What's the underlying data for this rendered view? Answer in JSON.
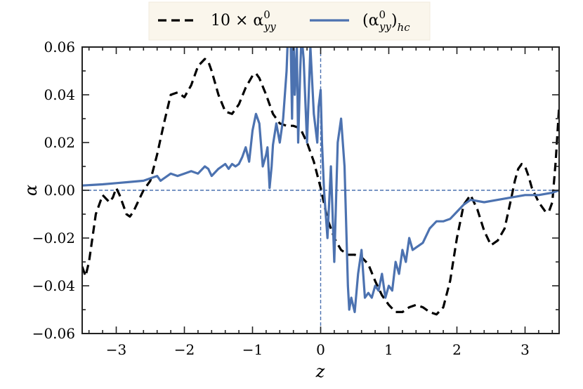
{
  "chart_data": {
    "type": "line",
    "xlabel": "z",
    "ylabel": "α",
    "xlim": [
      -3.5,
      3.5
    ],
    "ylim": [
      -0.06,
      0.06
    ],
    "x_ticks": [
      -3,
      -2,
      -1,
      0,
      1,
      2,
      3
    ],
    "x_tick_labels": [
      "−3",
      "−2",
      "−1",
      "0",
      "1",
      "2",
      "3"
    ],
    "y_ticks": [
      0.06,
      0.04,
      0.02,
      0.0,
      -0.02,
      -0.04,
      -0.06
    ],
    "y_tick_labels": [
      "0.06",
      "0.04",
      "0.02",
      "0.00",
      "−0.02",
      "−0.04",
      "−0.06"
    ],
    "reference_lines": {
      "x": 0,
      "y": 0,
      "color": "#4c72b0",
      "style": "dashed"
    },
    "grid": false,
    "legend_position": "top-center",
    "series": [
      {
        "name": "10 × α⁰yy",
        "legend_main": "10 × α",
        "legend_sup": "0",
        "legend_sub": "yy",
        "color": "#000000",
        "style": "dashed",
        "x": [
          -3.5,
          -3.45,
          -3.4,
          -3.3,
          -3.2,
          -3.1,
          -3.05,
          -3.0,
          -2.95,
          -2.9,
          -2.85,
          -2.8,
          -2.75,
          -2.7,
          -2.6,
          -2.5,
          -2.4,
          -2.3,
          -2.2,
          -2.1,
          -2.0,
          -1.9,
          -1.8,
          -1.7,
          -1.65,
          -1.6,
          -1.5,
          -1.4,
          -1.3,
          -1.2,
          -1.1,
          -1.0,
          -0.95,
          -0.9,
          -0.8,
          -0.7,
          -0.6,
          -0.5,
          -0.4,
          -0.3,
          -0.2,
          -0.1,
          0.0,
          0.1,
          0.2,
          0.3,
          0.4,
          0.5,
          0.6,
          0.7,
          0.8,
          0.9,
          1.0,
          1.1,
          1.2,
          1.3,
          1.4,
          1.5,
          1.6,
          1.7,
          1.8,
          1.9,
          2.0,
          2.1,
          2.2,
          2.3,
          2.4,
          2.5,
          2.6,
          2.7,
          2.8,
          2.85,
          2.9,
          2.95,
          3.0,
          3.05,
          3.1,
          3.2,
          3.3,
          3.35,
          3.4,
          3.45,
          3.5
        ],
        "y": [
          -0.032,
          -0.036,
          -0.03,
          -0.01,
          -0.002,
          -0.005,
          -0.003,
          0.001,
          -0.002,
          -0.006,
          -0.01,
          -0.011,
          -0.009,
          -0.006,
          0.0,
          0.004,
          0.015,
          0.028,
          0.04,
          0.041,
          0.039,
          0.044,
          0.052,
          0.055,
          0.054,
          0.05,
          0.04,
          0.033,
          0.032,
          0.036,
          0.043,
          0.048,
          0.049,
          0.047,
          0.04,
          0.032,
          0.028,
          0.027,
          0.027,
          0.026,
          0.02,
          0.012,
          0.001,
          -0.012,
          -0.02,
          -0.025,
          -0.027,
          -0.027,
          -0.028,
          -0.031,
          -0.038,
          -0.044,
          -0.048,
          -0.051,
          -0.051,
          -0.049,
          -0.048,
          -0.049,
          -0.051,
          -0.052,
          -0.049,
          -0.038,
          -0.02,
          -0.006,
          -0.002,
          -0.008,
          -0.017,
          -0.023,
          -0.021,
          -0.016,
          -0.003,
          0.004,
          0.009,
          0.011,
          0.01,
          0.006,
          0.001,
          -0.005,
          -0.009,
          -0.009,
          -0.005,
          0.012,
          0.035
        ]
      },
      {
        "name": "(α⁰yy)hc",
        "legend_main": "(α",
        "legend_sup": "0",
        "legend_sub": "yy",
        "legend_close": ")",
        "legend_sub2": "hc",
        "color": "#4c72b0",
        "style": "solid",
        "x": [
          -3.5,
          -3.2,
          -3.0,
          -2.8,
          -2.6,
          -2.5,
          -2.4,
          -2.35,
          -2.3,
          -2.2,
          -2.1,
          -2.0,
          -1.9,
          -1.8,
          -1.7,
          -1.65,
          -1.6,
          -1.5,
          -1.4,
          -1.35,
          -1.3,
          -1.25,
          -1.2,
          -1.15,
          -1.1,
          -1.05,
          -1.0,
          -0.95,
          -0.9,
          -0.85,
          -0.8,
          -0.78,
          -0.75,
          -0.72,
          -0.7,
          -0.65,
          -0.6,
          -0.55,
          -0.5,
          -0.48,
          -0.45,
          -0.42,
          -0.4,
          -0.38,
          -0.35,
          -0.33,
          -0.3,
          -0.28,
          -0.25,
          -0.2,
          -0.15,
          -0.1,
          -0.05,
          -0.03,
          0.0,
          0.02,
          0.05,
          0.1,
          0.15,
          0.2,
          0.25,
          0.3,
          0.35,
          0.4,
          0.42,
          0.45,
          0.5,
          0.55,
          0.6,
          0.65,
          0.7,
          0.75,
          0.8,
          0.85,
          0.9,
          0.95,
          1.0,
          1.05,
          1.1,
          1.15,
          1.2,
          1.25,
          1.3,
          1.35,
          1.4,
          1.5,
          1.6,
          1.7,
          1.8,
          1.9,
          2.0,
          2.1,
          2.2,
          2.4,
          2.6,
          2.8,
          3.0,
          3.2,
          3.4,
          3.5
        ],
        "y": [
          0.002,
          0.0025,
          0.003,
          0.0035,
          0.004,
          0.005,
          0.006,
          0.004,
          0.005,
          0.007,
          0.006,
          0.007,
          0.008,
          0.007,
          0.01,
          0.009,
          0.006,
          0.009,
          0.011,
          0.009,
          0.011,
          0.01,
          0.011,
          0.014,
          0.018,
          0.012,
          0.025,
          0.032,
          0.028,
          0.01,
          0.015,
          0.018,
          0.001,
          0.01,
          0.019,
          0.028,
          0.02,
          0.03,
          0.05,
          0.065,
          0.08,
          0.03,
          0.07,
          0.04,
          0.06,
          0.02,
          0.05,
          0.065,
          0.055,
          0.02,
          0.06,
          0.032,
          0.02,
          0.035,
          0.042,
          0.02,
          0.0,
          -0.02,
          0.01,
          -0.03,
          0.02,
          0.03,
          0.01,
          -0.04,
          -0.05,
          -0.045,
          -0.051,
          -0.035,
          -0.025,
          -0.045,
          -0.043,
          -0.045,
          -0.04,
          -0.042,
          -0.035,
          -0.045,
          -0.04,
          -0.042,
          -0.03,
          -0.035,
          -0.025,
          -0.03,
          -0.02,
          -0.025,
          -0.024,
          -0.022,
          -0.016,
          -0.013,
          -0.013,
          -0.012,
          -0.009,
          -0.006,
          -0.004,
          -0.005,
          -0.004,
          -0.003,
          -0.002,
          -0.002,
          -0.001,
          0.0
        ]
      }
    ]
  }
}
